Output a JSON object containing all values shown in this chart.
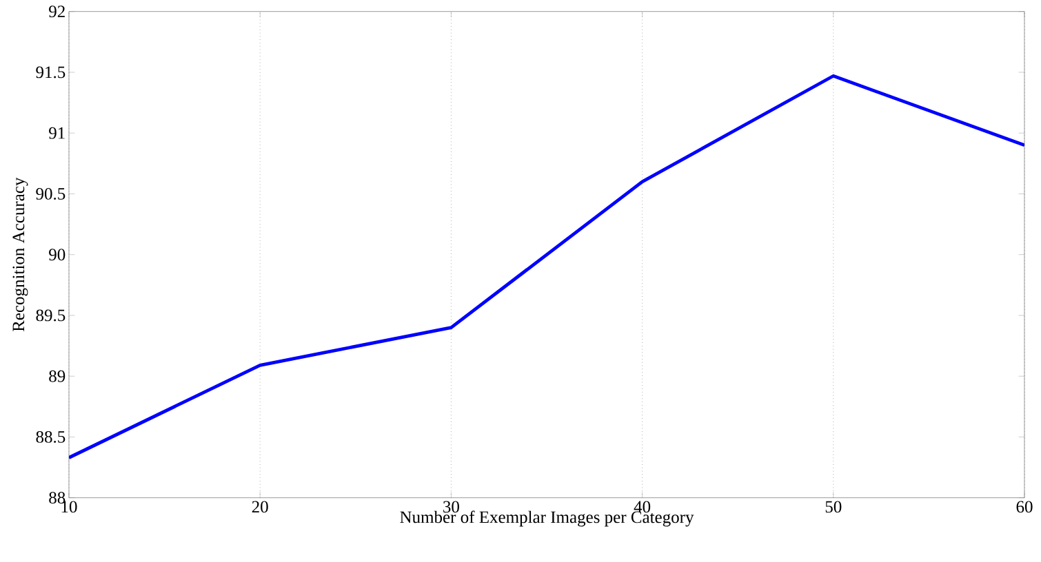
{
  "chart_data": {
    "type": "line",
    "xlabel": "Number of Exemplar Images per Category",
    "ylabel": "Recognition Accuracy",
    "x": [
      10,
      20,
      30,
      40,
      50,
      60
    ],
    "series": [
      {
        "color": "#0000ff",
        "values": [
          88.33,
          89.09,
          89.4,
          90.6,
          91.47,
          90.9
        ]
      }
    ],
    "xlim": [
      10,
      60
    ],
    "xticks": [
      10,
      20,
      30,
      40,
      50,
      60
    ],
    "ylim": [
      88,
      92
    ],
    "yticks": [
      88,
      88.5,
      89,
      89.5,
      90,
      90.5,
      91,
      91.5,
      92
    ],
    "grid": "x",
    "marker": "none",
    "line_style": "solid"
  }
}
